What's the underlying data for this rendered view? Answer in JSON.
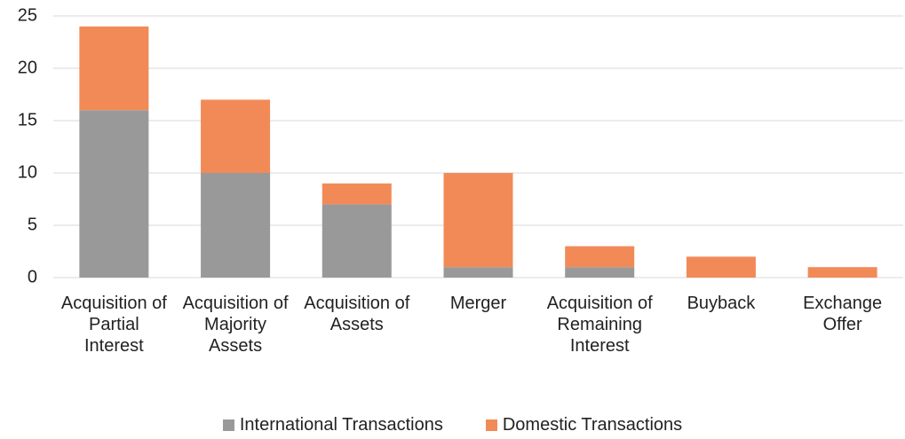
{
  "chart_data": {
    "type": "bar",
    "stacked": true,
    "categories": [
      "Acquisition of Partial Interest",
      "Acquisition of Majority Assets",
      "Acquisition of Assets",
      "Merger",
      "Acquisition of Remaining Interest",
      "Buyback",
      "Exchange Offer"
    ],
    "series": [
      {
        "name": "International Transactions",
        "color": "#999999",
        "values": [
          16,
          10,
          7,
          1,
          1,
          0,
          0
        ]
      },
      {
        "name": "Domestic Transactions",
        "color": "#f28a58",
        "values": [
          8,
          7,
          2,
          9,
          2,
          2,
          1
        ]
      }
    ],
    "ylim": [
      0,
      25
    ],
    "yticks": [
      0,
      5,
      10,
      15,
      20,
      25
    ],
    "grid": true,
    "legend": "bottom"
  }
}
